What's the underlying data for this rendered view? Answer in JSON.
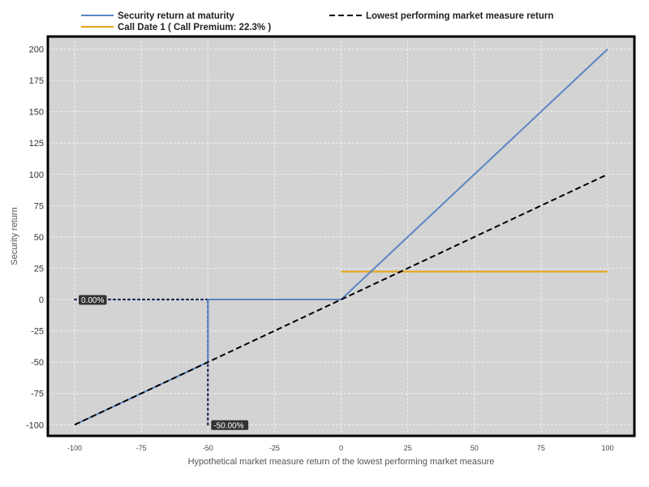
{
  "chart_data": {
    "type": "line",
    "xlabel": "Hypothetical market measure return of the lowest performing market measure",
    "ylabel": "Security return",
    "xlim": [
      -100,
      100
    ],
    "ylim": [
      -110,
      210
    ],
    "x_ticks": [
      -100,
      -75,
      -50,
      -25,
      0,
      25,
      50,
      75,
      100
    ],
    "y_ticks": [
      -100,
      -75,
      -50,
      -25,
      0,
      25,
      50,
      75,
      100,
      125,
      150,
      175,
      200
    ],
    "grid": true,
    "legend_position": "top",
    "series": [
      {
        "name": "Security return at maturity",
        "color": "#5a86c3",
        "style": "solid",
        "x": [
          -100,
          -50,
          -50,
          0,
          100
        ],
        "y": [
          -100,
          -50,
          0,
          0,
          200
        ]
      },
      {
        "name": "Lowest performing market measure return",
        "color": "#000000",
        "style": "dashed",
        "x": [
          -100,
          100
        ],
        "y": [
          -100,
          100
        ]
      },
      {
        "name": "Call Date 1 ( Call Premium: 22.3% )",
        "color": "#e8a317",
        "style": "solid",
        "x": [
          0,
          100
        ],
        "y": [
          22.3,
          22.3
        ]
      }
    ],
    "annotations": [
      {
        "text": "0.00%",
        "x": -100,
        "y": 0,
        "guide": "horizontal",
        "guide_from": -100,
        "guide_to": -50
      },
      {
        "text": "-50.00%",
        "x": -50,
        "y": -100,
        "guide": "vertical",
        "guide_from": -100,
        "guide_to": 0
      }
    ],
    "colors": {
      "plot_background": "#d3d3d3",
      "grid": "#f2f2f2",
      "frame": "#000000",
      "guide": "#1f2a5a",
      "callout_bg": "#333333"
    }
  }
}
